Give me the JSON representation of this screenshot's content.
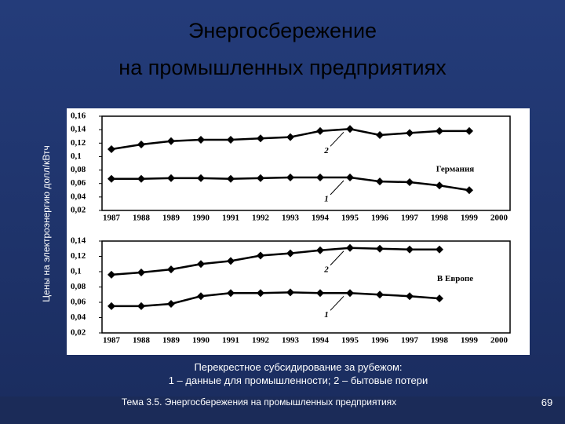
{
  "slide": {
    "title_lines": [
      "Энергосбережение",
      "на промышленных предприятиях"
    ],
    "y_axis_label": "Цены на электроэнергию долл/кВтч",
    "caption_lines": [
      "Перекрестное субсидирование за рубежом:",
      "1 – данные для промышленности; 2 – бытовые потери"
    ],
    "footer": "Тема 3.5. Энергосбережения на промышленных предприятиях",
    "page_number": "69"
  },
  "chart_data": [
    {
      "type": "line",
      "annotation": "Германия",
      "categories": [
        "1987",
        "1988",
        "1989",
        "1990",
        "1991",
        "1992",
        "1993",
        "1994",
        "1995",
        "1996",
        "1997",
        "1998",
        "1999",
        "2000"
      ],
      "series": [
        {
          "name": "2",
          "color": "#000000",
          "values": [
            0.111,
            0.118,
            0.123,
            0.125,
            0.125,
            0.127,
            0.129,
            0.138,
            0.141,
            0.132,
            0.135,
            0.138,
            0.138,
            null
          ]
        },
        {
          "name": "1",
          "color": "#000000",
          "values": [
            0.067,
            0.067,
            0.068,
            0.068,
            0.067,
            0.068,
            0.069,
            0.069,
            0.069,
            0.063,
            0.062,
            0.057,
            0.05,
            null
          ]
        }
      ],
      "ylim": [
        0.02,
        0.16
      ],
      "yticks": [
        {
          "value": 0.02,
          "label": "0,02"
        },
        {
          "value": 0.04,
          "label": "0,04"
        },
        {
          "value": 0.06,
          "label": "0,06"
        },
        {
          "value": 0.08,
          "label": "0,08"
        },
        {
          "value": 0.1,
          "label": "0,1"
        },
        {
          "value": 0.12,
          "label": "0,12"
        },
        {
          "value": 0.14,
          "label": "0,14"
        },
        {
          "value": 0.16,
          "label": "0,16"
        }
      ]
    },
    {
      "type": "line",
      "annotation": "В Европе",
      "categories": [
        "1987",
        "1988",
        "1989",
        "1990",
        "1991",
        "1992",
        "1993",
        "1994",
        "1995",
        "1996",
        "1997",
        "1998",
        "1999",
        "2000"
      ],
      "series": [
        {
          "name": "2",
          "color": "#000000",
          "values": [
            0.096,
            0.099,
            0.103,
            0.11,
            0.114,
            0.121,
            0.124,
            0.128,
            0.131,
            0.13,
            0.129,
            0.129,
            null,
            null
          ]
        },
        {
          "name": "1",
          "color": "#000000",
          "values": [
            0.055,
            0.055,
            0.058,
            0.068,
            0.072,
            0.072,
            0.073,
            0.072,
            0.072,
            0.07,
            0.068,
            0.065,
            null,
            null
          ]
        }
      ],
      "ylim": [
        0.02,
        0.14
      ],
      "yticks": [
        {
          "value": 0.02,
          "label": "0,02"
        },
        {
          "value": 0.04,
          "label": "0,04"
        },
        {
          "value": 0.06,
          "label": "0,06"
        },
        {
          "value": 0.08,
          "label": "0,08"
        },
        {
          "value": 0.1,
          "label": "0,1"
        },
        {
          "value": 0.12,
          "label": "0,12"
        },
        {
          "value": 0.14,
          "label": "0,14"
        }
      ]
    }
  ]
}
